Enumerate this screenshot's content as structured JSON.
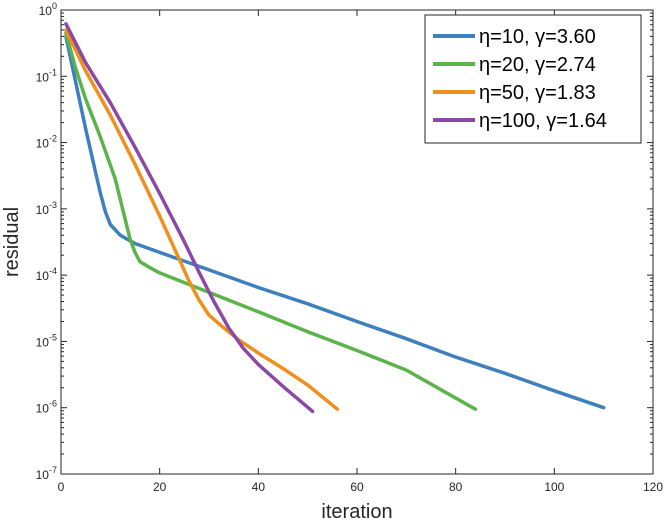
{
  "chart_data": {
    "type": "line",
    "xlabel": "iteration",
    "ylabel": "residual",
    "xlim": [
      0,
      120
    ],
    "ylim": [
      1e-07,
      1
    ],
    "yscale": "log",
    "xticks": [
      0,
      20,
      40,
      60,
      80,
      100,
      120
    ],
    "xtick_labels": [
      "0",
      "20",
      "40",
      "60",
      "80",
      "100",
      "120"
    ],
    "yticks": [
      1e-07,
      1e-06,
      1e-05,
      0.0001,
      0.001,
      0.01,
      0.1,
      1
    ],
    "ytick_labels": [
      {
        "base": "10",
        "exp": "-7"
      },
      {
        "base": "10",
        "exp": "-6"
      },
      {
        "base": "10",
        "exp": "-5"
      },
      {
        "base": "10",
        "exp": "-4"
      },
      {
        "base": "10",
        "exp": "-3"
      },
      {
        "base": "10",
        "exp": "-2"
      },
      {
        "base": "10",
        "exp": "-1"
      },
      {
        "base": "10",
        "exp": "0"
      }
    ],
    "grid": false,
    "legend_position": "top-right",
    "series": [
      {
        "name": "η=10, γ=3.60",
        "color": "#3e7fbd",
        "points": [
          [
            1,
            0.4
          ],
          [
            3,
            0.08
          ],
          [
            5,
            0.016
          ],
          [
            7,
            0.0036
          ],
          [
            8,
            0.0017
          ],
          [
            9,
            0.0009
          ],
          [
            10,
            0.00058
          ],
          [
            12,
            0.0004
          ],
          [
            15,
            0.0003
          ],
          [
            20,
            0.00022
          ],
          [
            30,
            0.00012
          ],
          [
            40,
            6.5e-05
          ],
          [
            50,
            3.7e-05
          ],
          [
            60,
            2e-05
          ],
          [
            70,
            1.1e-05
          ],
          [
            80,
            5.8e-06
          ],
          [
            90,
            3.3e-06
          ],
          [
            100,
            1.8e-06
          ],
          [
            110,
            1e-06
          ]
        ]
      },
      {
        "name": "η=20, γ=2.74",
        "color": "#5bb44a",
        "points": [
          [
            1,
            0.45
          ],
          [
            3,
            0.13
          ],
          [
            5,
            0.045
          ],
          [
            8,
            0.012
          ],
          [
            11,
            0.0028
          ],
          [
            13,
            0.0007
          ],
          [
            14,
            0.00035
          ],
          [
            15,
            0.00022
          ],
          [
            16,
            0.00016
          ],
          [
            18,
            0.00013
          ],
          [
            20,
            0.000108
          ],
          [
            30,
            5.5e-05
          ],
          [
            40,
            2.8e-05
          ],
          [
            50,
            1.4e-05
          ],
          [
            60,
            7.3e-06
          ],
          [
            70,
            3.7e-06
          ],
          [
            84,
            9.5e-07
          ]
        ]
      },
      {
        "name": "η=50, γ=1.83",
        "color": "#f08e1e",
        "points": [
          [
            1,
            0.5
          ],
          [
            5,
            0.12
          ],
          [
            10,
            0.026
          ],
          [
            15,
            0.0047
          ],
          [
            20,
            0.00078
          ],
          [
            23,
            0.00025
          ],
          [
            26,
            8e-05
          ],
          [
            28,
            4.2e-05
          ],
          [
            30,
            2.5e-05
          ],
          [
            33,
            1.6e-05
          ],
          [
            36,
            1.06e-05
          ],
          [
            40,
            6.7e-06
          ],
          [
            45,
            3.9e-06
          ],
          [
            50,
            2.2e-06
          ],
          [
            56,
            9.5e-07
          ]
        ]
      },
      {
        "name": "η=100, γ=1.64",
        "color": "#8b48a4",
        "points": [
          [
            1,
            0.62
          ],
          [
            5,
            0.16
          ],
          [
            10,
            0.04
          ],
          [
            15,
            0.0085
          ],
          [
            20,
            0.0017
          ],
          [
            25,
            0.00032
          ],
          [
            28,
            0.00011
          ],
          [
            31,
            4e-05
          ],
          [
            34,
            1.6e-05
          ],
          [
            37,
            7.8e-06
          ],
          [
            40,
            4.5e-06
          ],
          [
            45,
            2.1e-06
          ],
          [
            51,
            8.8e-07
          ]
        ]
      }
    ]
  }
}
